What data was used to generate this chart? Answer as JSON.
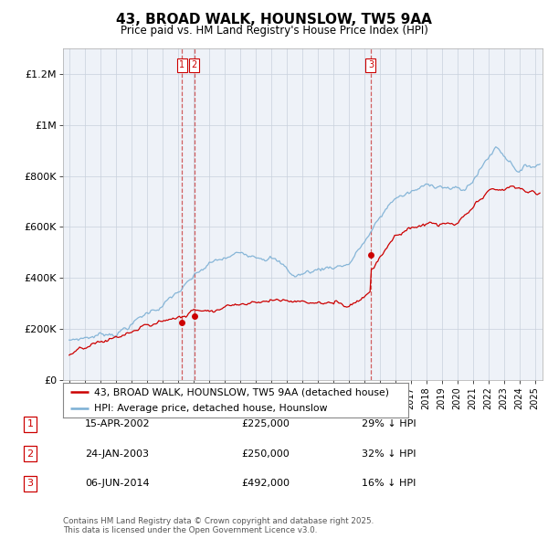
{
  "title": "43, BROAD WALK, HOUNSLOW, TW5 9AA",
  "subtitle": "Price paid vs. HM Land Registry's House Price Index (HPI)",
  "ylim": [
    0,
    1300000
  ],
  "yticks": [
    0,
    200000,
    400000,
    600000,
    800000,
    1000000,
    1200000
  ],
  "ytick_labels": [
    "£0",
    "£200K",
    "£400K",
    "£600K",
    "£800K",
    "£1M",
    "£1.2M"
  ],
  "legend_line1": "43, BROAD WALK, HOUNSLOW, TW5 9AA (detached house)",
  "legend_line2": "HPI: Average price, detached house, Hounslow",
  "transactions": [
    {
      "num": 1,
      "date": "15-APR-2002",
      "price": 225000,
      "hpi_diff": "29% ↓ HPI",
      "x": 2002.28
    },
    {
      "num": 2,
      "date": "24-JAN-2003",
      "price": 250000,
      "hpi_diff": "32% ↓ HPI",
      "x": 2003.06
    },
    {
      "num": 3,
      "date": "06-JUN-2014",
      "price": 492000,
      "hpi_diff": "16% ↓ HPI",
      "x": 2014.43
    }
  ],
  "footnote": "Contains HM Land Registry data © Crown copyright and database right 2025.\nThis data is licensed under the Open Government Licence v3.0.",
  "red_color": "#cc0000",
  "blue_color": "#7bafd4",
  "vline_color": "#cc4444",
  "vline_bg_color": "#c8d8e8",
  "bg_color": "#eef2f8",
  "grid_color": "#c8d0dc",
  "background_color": "#ffffff"
}
